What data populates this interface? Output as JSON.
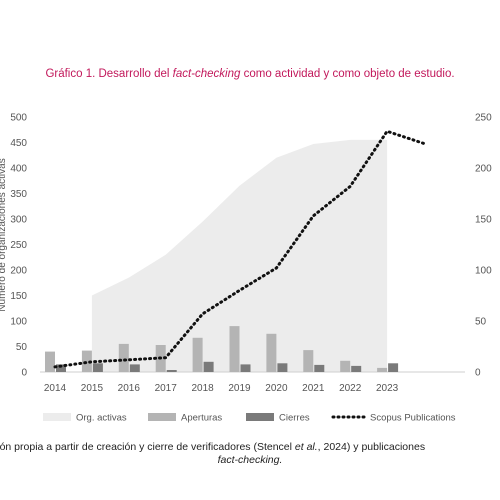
{
  "title": {
    "prefix": "Gráfico 1. Desarrollo del ",
    "emph": "fact-checking",
    "suffix": " como actividad y como objeto de estudio."
  },
  "caption": {
    "line1_a": "ción propia a partir de creación y cierre de verificadores (Stencel ",
    "line1_emph": "et al.",
    "line1_b": ", 2024) y publicaciones",
    "line2": "fact-checking."
  },
  "colors": {
    "area": "#ececec",
    "aperturas": "#b4b4b4",
    "cierres": "#7a7a7a",
    "line": "#111111"
  },
  "chart_data": {
    "type": "bar",
    "categories": [
      "2014",
      "2015",
      "2016",
      "2017",
      "2018",
      "2019",
      "2020",
      "2021",
      "2022",
      "2023"
    ],
    "y_left": {
      "min": 0,
      "max": 500,
      "ticks": [
        0,
        50,
        100,
        150,
        200,
        250,
        300,
        350,
        400,
        450,
        500
      ]
    },
    "y_right": {
      "min": 0,
      "max": 250,
      "ticks": [
        0,
        50,
        100,
        150,
        200,
        250
      ]
    },
    "ylabel": "Número de organizaciones activas",
    "series": [
      {
        "name": "Org. activas",
        "type": "area",
        "axis": "left",
        "x": [
          "2015",
          "2016",
          "2017",
          "2018",
          "2019",
          "2020",
          "2021",
          "2022",
          "2023"
        ],
        "values": [
          150,
          185,
          230,
          295,
          365,
          420,
          447,
          455,
          455
        ]
      },
      {
        "name": "Aperturas",
        "type": "bar",
        "axis": "left",
        "values": [
          40,
          42,
          55,
          53,
          67,
          90,
          75,
          43,
          22,
          8
        ]
      },
      {
        "name": "Cierres",
        "type": "bar",
        "axis": "left",
        "values": [
          15,
          17,
          15,
          4,
          20,
          15,
          17,
          14,
          12,
          17
        ]
      },
      {
        "name": "Scopus Publications",
        "type": "line",
        "axis": "right",
        "x": [
          "2014",
          "2015",
          "2016",
          "2017",
          "2018",
          "2019",
          "2020",
          "2021",
          "2022",
          "2023",
          "2024"
        ],
        "values": [
          5,
          10,
          12,
          14,
          57,
          80,
          102,
          153,
          182,
          236,
          224
        ]
      }
    ],
    "legend_position": "bottom"
  }
}
